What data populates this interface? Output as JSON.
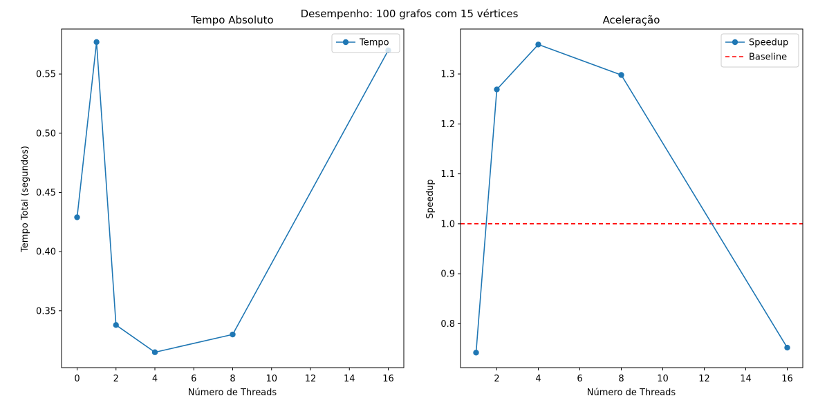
{
  "figure": {
    "suptitle": "Desempenho: 100 grafos com 15 vértices"
  },
  "chart_data": [
    {
      "type": "line",
      "title": "Tempo Absoluto",
      "xlabel": "Número de Threads",
      "ylabel": "Tempo Total (segundos)",
      "xlim": [
        -0.8,
        16.8
      ],
      "ylim": [
        0.302,
        0.588
      ],
      "xticks": [
        0,
        2,
        4,
        6,
        8,
        10,
        12,
        14,
        16
      ],
      "yticks": [
        0.35,
        0.4,
        0.45,
        0.5,
        0.55
      ],
      "ytick_decimals": 2,
      "grid": false,
      "legend_position": "top-right",
      "series": [
        {
          "name": "Tempo",
          "color": "#1f77b4",
          "marker": "circle",
          "line_style": "solid",
          "x": [
            0,
            1,
            2,
            4,
            8,
            16
          ],
          "y": [
            0.429,
            0.577,
            0.338,
            0.315,
            0.33,
            0.57
          ]
        }
      ]
    },
    {
      "type": "line",
      "title": "Aceleração",
      "xlabel": "Número de Threads",
      "ylabel": "Speedup",
      "xlim": [
        0.25,
        16.75
      ],
      "ylim": [
        0.712,
        1.39
      ],
      "xticks": [
        2,
        4,
        6,
        8,
        10,
        12,
        14,
        16
      ],
      "yticks": [
        0.8,
        0.9,
        1.0,
        1.1,
        1.2,
        1.3
      ],
      "ytick_decimals": 1,
      "grid": false,
      "legend_position": "top-right",
      "series": [
        {
          "name": "Speedup",
          "color": "#1f77b4",
          "marker": "circle",
          "line_style": "solid",
          "x": [
            1,
            2,
            4,
            8,
            16
          ],
          "y": [
            0.742,
            1.269,
            1.359,
            1.298,
            0.752
          ]
        }
      ],
      "reference_lines": [
        {
          "name": "Baseline",
          "y": 1.0,
          "color": "#ff0000",
          "line_style": "dashed"
        }
      ]
    }
  ]
}
